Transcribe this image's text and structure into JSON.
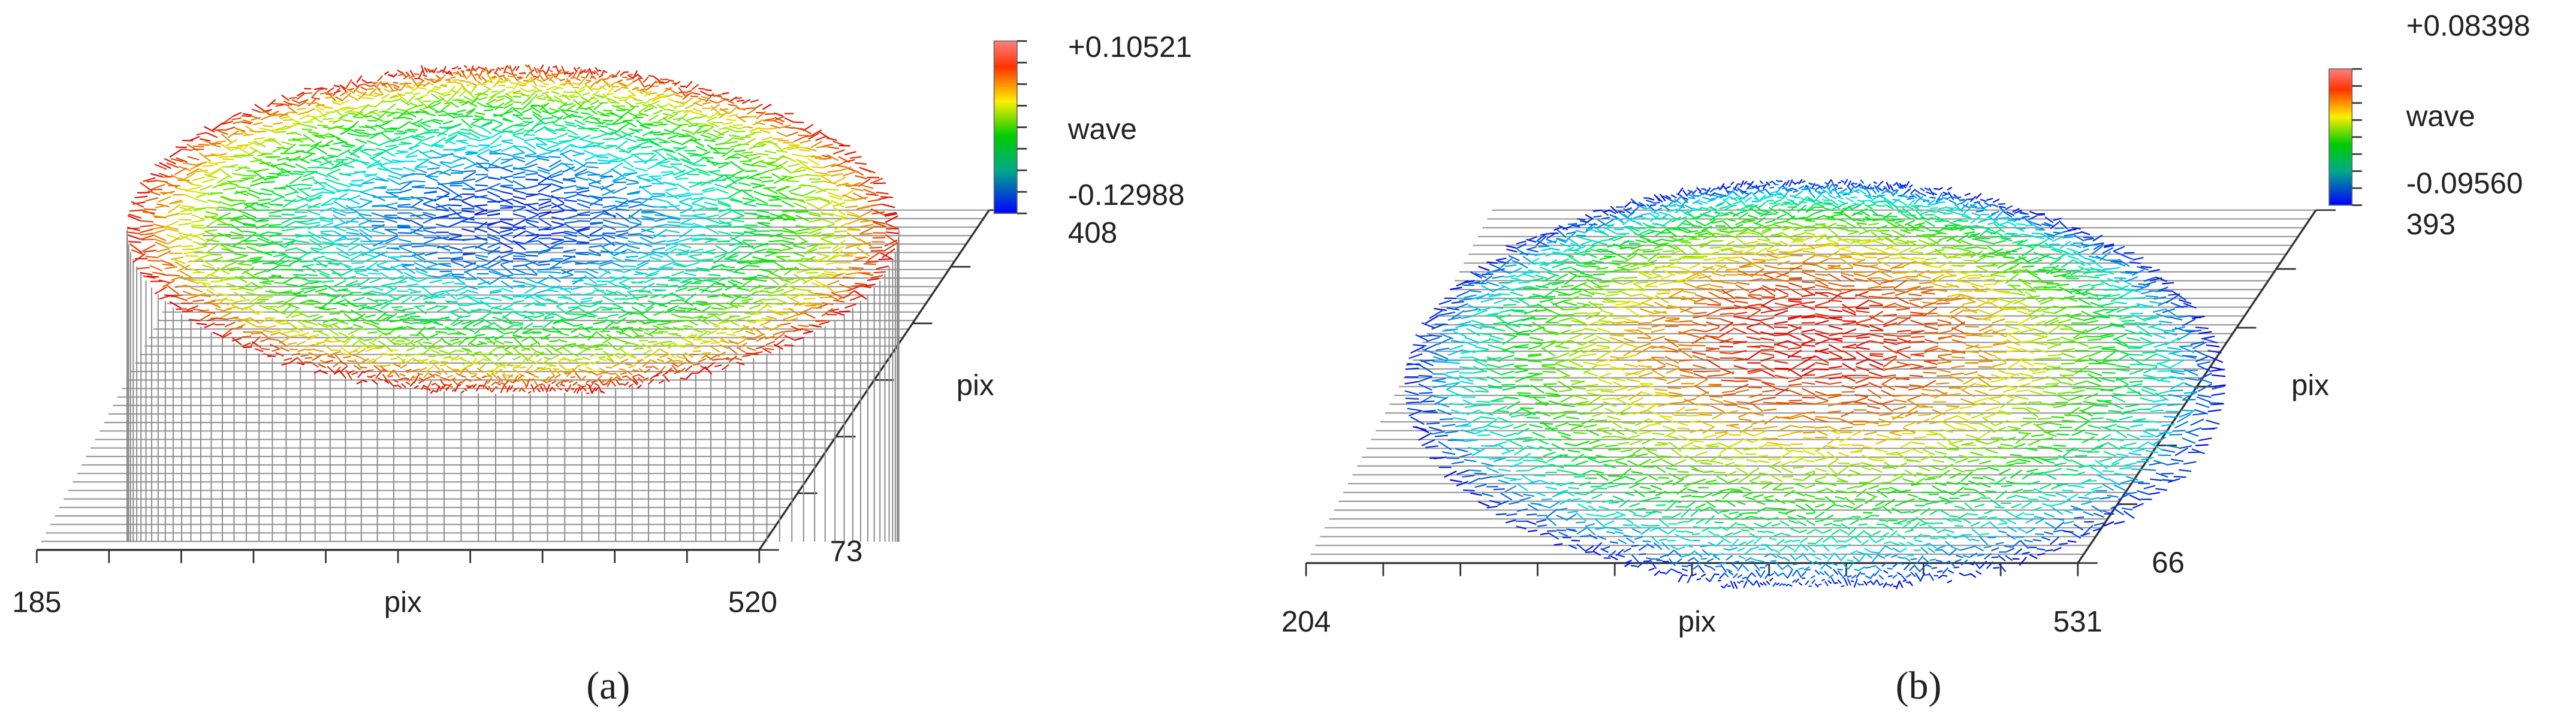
{
  "panels": [
    {
      "caption": "(a)",
      "colorbar": {
        "max": "+0.10521",
        "title": "wave",
        "min": "-0.12988"
      },
      "x_axis": {
        "min": 185,
        "title": "pix",
        "max": 520
      },
      "y_axis": {
        "max": 408,
        "title": "pix",
        "min": 73
      }
    },
    {
      "caption": "(b)",
      "colorbar": {
        "max": "+0.08398",
        "title": "wave",
        "min": "-0.09560"
      },
      "x_axis": {
        "min": 204,
        "title": "pix",
        "max": 531
      },
      "y_axis": {
        "max": 393,
        "title": "pix",
        "min": 66
      }
    }
  ]
}
